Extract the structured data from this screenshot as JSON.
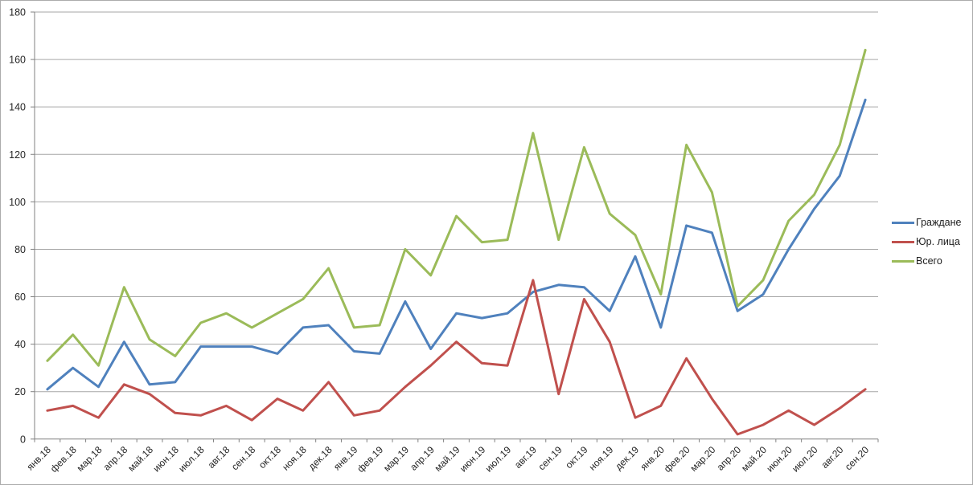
{
  "chart_data": {
    "type": "line",
    "title": "",
    "xlabel": "",
    "ylabel": "",
    "categories": [
      "янв.18",
      "фев.18",
      "мар.18",
      "апр.18",
      "май.18",
      "июн.18",
      "июл.18",
      "авг.18",
      "сен.18",
      "окт.18",
      "ноя.18",
      "дек.18",
      "янв.19",
      "фев.19",
      "мар.19",
      "апр.19",
      "май.19",
      "июн.19",
      "июл.19",
      "авг.19",
      "сен.19",
      "окт.19",
      "ноя.19",
      "дек.19",
      "янв.20",
      "фев.20",
      "мар.20",
      "апр.20",
      "май.20",
      "июн.20",
      "июл.20",
      "авг.20",
      "сен.20"
    ],
    "series": [
      {
        "name": "Граждане",
        "color": "#4F81BD",
        "values": [
          21,
          30,
          22,
          41,
          23,
          24,
          39,
          39,
          39,
          36,
          47,
          48,
          37,
          36,
          58,
          38,
          53,
          51,
          53,
          62,
          65,
          64,
          54,
          77,
          47,
          90,
          87,
          54,
          61,
          80,
          97,
          111,
          143
        ]
      },
      {
        "name": "Юр. лица",
        "color": "#C0504D",
        "values": [
          12,
          14,
          9,
          23,
          19,
          11,
          10,
          14,
          8,
          17,
          12,
          24,
          10,
          12,
          22,
          31,
          41,
          32,
          31,
          67,
          19,
          59,
          41,
          9,
          14,
          34,
          17,
          2,
          6,
          12,
          6,
          13,
          21
        ]
      },
      {
        "name": "Всего",
        "color": "#9BBB59",
        "values": [
          33,
          44,
          31,
          64,
          42,
          35,
          49,
          53,
          47,
          53,
          59,
          72,
          47,
          48,
          80,
          69,
          94,
          83,
          84,
          129,
          84,
          123,
          95,
          86,
          61,
          124,
          104,
          56,
          67,
          92,
          103,
          124,
          164
        ]
      }
    ],
    "ylim": [
      0,
      180
    ],
    "ytick_interval": 20,
    "y_tick_labels": [
      "0",
      "20",
      "40",
      "60",
      "80",
      "100",
      "120",
      "140",
      "160",
      "180"
    ],
    "grid": "horizontal",
    "legend_position": "right"
  },
  "colors": {
    "axis": "#808080",
    "gridline": "#A6A6A6",
    "tick": "#808080",
    "label_text": "#262626",
    "background": "#FFFFFF",
    "frame_border": "#ABABAB"
  }
}
